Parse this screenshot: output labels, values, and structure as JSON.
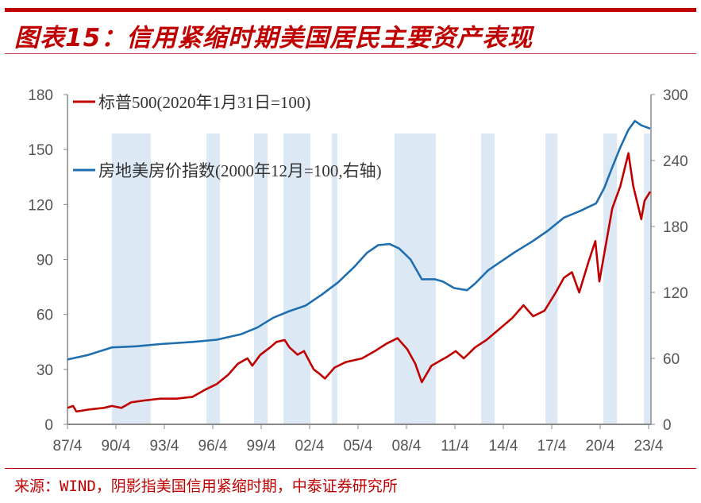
{
  "title": "图表15：信用紧缩时期美国居民主要资产表现",
  "source": "来源：WIND，阴影指美国信用紧缩时期，中泰证券研究所",
  "chart_data": {
    "type": "line",
    "title": "",
    "xlabel": "",
    "ylabel": "",
    "x_tick_labels": [
      "87/4",
      "90/4",
      "93/4",
      "96/4",
      "99/4",
      "02/4",
      "05/4",
      "08/4",
      "11/4",
      "14/4",
      "17/4",
      "20/4",
      "23/4"
    ],
    "x_ticks": [
      1987.25,
      1990.25,
      1993.25,
      1996.25,
      1999.25,
      2002.25,
      2005.25,
      2008.25,
      2011.25,
      2014.25,
      2017.25,
      2020.25,
      2023.25
    ],
    "xlim": [
      1987.25,
      2023.25
    ],
    "ylim_left": [
      0,
      180
    ],
    "yticks_left": [
      0,
      30,
      60,
      90,
      120,
      150,
      180
    ],
    "ylim_right": [
      0,
      300
    ],
    "yticks_right": [
      0,
      60,
      120,
      180,
      240,
      300
    ],
    "legend_position": "top-left",
    "grid": false,
    "shaded_periods": [
      [
        1990.0,
        1992.4
      ],
      [
        1995.86,
        1996.7
      ],
      [
        1998.8,
        1999.65
      ],
      [
        2000.63,
        2002.3
      ],
      [
        2003.63,
        2003.97
      ],
      [
        2007.5,
        2010.07
      ],
      [
        2012.88,
        2013.71
      ],
      [
        2016.86,
        2017.6
      ],
      [
        2020.45,
        2021.29
      ],
      [
        2022.96,
        2023.35
      ]
    ],
    "shade_color": "#dce9f5",
    "series": [
      {
        "name": "标普500(2020年1月31日=100)",
        "axis": "left",
        "color": "#c00000",
        "x": [
          1987.25,
          1987.6,
          1987.8,
          1988.5,
          1989.5,
          1990.0,
          1990.6,
          1991.2,
          1992.0,
          1993.0,
          1994.0,
          1995.0,
          1995.8,
          1996.5,
          1997.2,
          1997.8,
          1998.4,
          1998.7,
          1999.2,
          1999.8,
          2000.2,
          2000.7,
          2001.0,
          2001.5,
          2001.9,
          2002.5,
          2002.8,
          2003.2,
          2003.8,
          2004.5,
          2005.5,
          2006.3,
          2007.0,
          2007.7,
          2008.3,
          2008.8,
          2009.2,
          2009.8,
          2010.4,
          2010.8,
          2011.3,
          2011.8,
          2012.5,
          2013.2,
          2014.0,
          2014.8,
          2015.5,
          2016.1,
          2016.8,
          2017.5,
          2018.0,
          2018.5,
          2018.95,
          2019.5,
          2019.95,
          2020.2,
          2020.6,
          2021.0,
          2021.5,
          2022.0,
          2022.3,
          2022.8,
          2023.0,
          2023.35
        ],
        "values": [
          9,
          10,
          7,
          8,
          9,
          10,
          9,
          12,
          13,
          14,
          14,
          15,
          19,
          22,
          27,
          33,
          36,
          32,
          38,
          42,
          45,
          46,
          42,
          38,
          40,
          30,
          28,
          25,
          31,
          34,
          36,
          40,
          44,
          47,
          41,
          33,
          23,
          32,
          35,
          37,
          40,
          36,
          42,
          46,
          52,
          58,
          65,
          59,
          62,
          72,
          80,
          83,
          72,
          88,
          100,
          78,
          98,
          118,
          130,
          148,
          130,
          112,
          122,
          127
        ]
      },
      {
        "name": "房地美房价指数(2000年12月=100,右轴)",
        "axis": "right",
        "color": "#1f6fb0",
        "x": [
          1987.25,
          1988.5,
          1990.0,
          1991.5,
          1993.0,
          1995.0,
          1996.5,
          1998.0,
          1999.0,
          2000.0,
          2001.0,
          2002.0,
          2003.0,
          2004.0,
          2005.0,
          2005.8,
          2006.5,
          2007.2,
          2007.8,
          2008.5,
          2009.2,
          2010.0,
          2010.5,
          2011.2,
          2012.0,
          2012.5,
          2013.3,
          2014.0,
          2015.0,
          2016.0,
          2017.0,
          2018.0,
          2019.0,
          2020.0,
          2020.5,
          2021.0,
          2021.5,
          2022.0,
          2022.4,
          2022.8,
          2023.35
        ],
        "values": [
          59,
          63,
          70,
          71,
          73,
          75,
          77,
          82,
          88,
          97,
          103,
          108,
          118,
          129,
          143,
          156,
          163,
          164,
          160,
          150,
          132,
          132,
          130,
          124,
          122,
          128,
          140,
          147,
          157,
          166,
          176,
          188,
          194,
          201,
          215,
          234,
          252,
          268,
          276,
          272,
          269
        ]
      }
    ]
  }
}
